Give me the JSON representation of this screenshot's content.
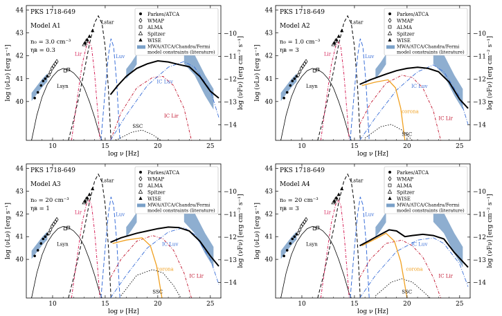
{
  "chart_data": [
    {
      "type": "line",
      "title": "PKS 1718-649",
      "model": "Model A1",
      "params": [
        "n₀ = 3.0 cm⁻³",
        "ηʙ = 0.3"
      ],
      "xlabel": "log ν [Hz]",
      "ylabel": "log (νLν) [erg s⁻¹]",
      "y2label": "log (νFν) [erg cm⁻² s⁻¹]",
      "xlim": [
        7.5,
        26
      ],
      "ylim": [
        38.3,
        44.2
      ],
      "y2lim": [
        -14.68,
        -8.78
      ],
      "xticks": [
        "10",
        "15",
        "20",
        "25"
      ],
      "yticks": [
        "40",
        "41",
        "42",
        "43",
        "44"
      ],
      "y2ticks": [
        "−10",
        "−11",
        "−12",
        "−13",
        "−14"
      ],
      "legend": [
        "Parkes/ATCA",
        "WMAP",
        "ALMA",
        "Spitzer",
        "WISE",
        "MWA/ATCA/Chandra/Fermi model constraints (literature)"
      ],
      "labels": [
        "Lstar",
        "Lsyn",
        "Lir",
        "Luv",
        "IC Luv",
        "IC Lir",
        "SSC"
      ],
      "total": [
        [
          15.5,
          40.3
        ],
        [
          16.2,
          40.7
        ],
        [
          17,
          41.1
        ],
        [
          18,
          41.45
        ],
        [
          19,
          41.65
        ],
        [
          20,
          41.78
        ],
        [
          21,
          41.73
        ],
        [
          22,
          41.62
        ],
        [
          23,
          41.52
        ],
        [
          24,
          41.1
        ],
        [
          25,
          40.45
        ],
        [
          25.8,
          40.15
        ]
      ],
      "ic_luv": [
        [
          15.5,
          38.3
        ],
        [
          17,
          39.4
        ],
        [
          19,
          40.7
        ],
        [
          21,
          41.5
        ],
        [
          22.5,
          41.75
        ],
        [
          23.5,
          41.5
        ],
        [
          25,
          40.5
        ],
        [
          25.8,
          39.3
        ]
      ],
      "ic_lir": [
        [
          15.5,
          38.3
        ],
        [
          16.5,
          39.5
        ],
        [
          18,
          40.6
        ],
        [
          19.5,
          41.05
        ],
        [
          20.5,
          41.1
        ],
        [
          21.5,
          40.7
        ],
        [
          22.5,
          39.7
        ],
        [
          23.2,
          38.3
        ]
      ],
      "ssc": [
        [
          16,
          38.3
        ],
        [
          17.5,
          38.65
        ],
        [
          18.5,
          38.75
        ],
        [
          19.5,
          38.55
        ],
        [
          20.3,
          38.3
        ]
      ],
      "corona": []
    },
    {
      "type": "line",
      "title": "PKS 1718-649",
      "model": "Model A2",
      "params": [
        "n₀ = 1.0 cm⁻³",
        "ηʙ = 3"
      ],
      "xlabel": "log ν [Hz]",
      "ylabel": "log (νLν) [erg s⁻¹]",
      "y2label": "log (νFν) [erg cm⁻² s⁻¹]",
      "xlim": [
        7.5,
        26
      ],
      "ylim": [
        38.3,
        44.2
      ],
      "y2lim": [
        -14.68,
        -8.78
      ],
      "xticks": [
        "10",
        "15",
        "20",
        "25"
      ],
      "yticks": [
        "40",
        "41",
        "42",
        "43",
        "44"
      ],
      "y2ticks": [
        "−10",
        "−11",
        "−12",
        "−13",
        "−14"
      ],
      "legend": [
        "Parkes/ATCA",
        "WMAP",
        "ALMA",
        "Spitzer",
        "WISE",
        "MWA/ATCA/Chandra/Fermi model constraints (literature)"
      ],
      "labels": [
        "Lstar",
        "Lsyn",
        "Lir",
        "Luv",
        "IC Luv",
        "IC Lir",
        "SSC",
        "corona"
      ],
      "total": [
        [
          15.5,
          40.75
        ],
        [
          16.5,
          40.95
        ],
        [
          18,
          41.2
        ],
        [
          19,
          41.35
        ],
        [
          20,
          41.45
        ],
        [
          21,
          41.5
        ],
        [
          22,
          41.45
        ],
        [
          23,
          41.3
        ],
        [
          24,
          40.85
        ],
        [
          25,
          40.1
        ],
        [
          25.8,
          39.7
        ]
      ],
      "ic_luv": [
        [
          15.5,
          38.3
        ],
        [
          17,
          39.3
        ],
        [
          19,
          40.5
        ],
        [
          21,
          41.3
        ],
        [
          22.5,
          41.6
        ],
        [
          23.5,
          41.3
        ],
        [
          25,
          40.2
        ],
        [
          25.8,
          39.0
        ]
      ],
      "ic_lir": [
        [
          15.5,
          39.0
        ],
        [
          16.5,
          39.9
        ],
        [
          18,
          40.8
        ],
        [
          19.5,
          41.15
        ],
        [
          20.5,
          41.05
        ],
        [
          21.5,
          40.6
        ],
        [
          22.5,
          39.6
        ],
        [
          23.2,
          38.3
        ]
      ],
      "ssc": [
        [
          16,
          38.4
        ],
        [
          17.5,
          38.9
        ],
        [
          18.5,
          39.0
        ],
        [
          19.5,
          38.75
        ],
        [
          20.5,
          38.3
        ]
      ],
      "corona": [
        [
          15.7,
          40.7
        ],
        [
          17,
          40.85
        ],
        [
          18.2,
          40.95
        ],
        [
          18.9,
          40.6
        ],
        [
          19.4,
          39.7
        ],
        [
          19.8,
          38.3
        ]
      ]
    },
    {
      "type": "line",
      "title": "PKS 1718-649",
      "model": "Model A3",
      "params": [
        "n₀ = 20 cm⁻³",
        "ηʙ = 1"
      ],
      "xlabel": "log ν [Hz]",
      "ylabel": "log (νLν) [erg s⁻¹]",
      "y2label": "log (νFν) [erg cm⁻² s⁻¹]",
      "xlim": [
        7.5,
        26
      ],
      "ylim": [
        38.3,
        44.2
      ],
      "y2lim": [
        -14.68,
        -8.78
      ],
      "xticks": [
        "10",
        "15",
        "20",
        "25"
      ],
      "yticks": [
        "40",
        "41",
        "42",
        "43",
        "44"
      ],
      "y2ticks": [
        "−10",
        "−11",
        "−12",
        "−13",
        "−14"
      ],
      "legend": [
        "Parkes/ATCA",
        "WMAP",
        "ALMA",
        "Spitzer",
        "WISE",
        "MWA/ATCA/Chandra/Fermi model constraints (literature)"
      ],
      "labels": [
        "Lstar",
        "Lsyn",
        "Lir",
        "Luv",
        "IC Luv",
        "IC Lir",
        "SSC",
        "corona"
      ],
      "total": [
        [
          15.5,
          40.75
        ],
        [
          16.5,
          40.95
        ],
        [
          18,
          41.15
        ],
        [
          19,
          41.25
        ],
        [
          20,
          41.35
        ],
        [
          21,
          41.42
        ],
        [
          22,
          41.4
        ],
        [
          23,
          41.25
        ],
        [
          24,
          40.8
        ],
        [
          25,
          40.15
        ],
        [
          25.8,
          39.7
        ]
      ],
      "ic_luv": [
        [
          15.5,
          38.3
        ],
        [
          17,
          39.3
        ],
        [
          19,
          40.5
        ],
        [
          21,
          41.2
        ],
        [
          22.5,
          41.4
        ],
        [
          23.5,
          41.1
        ],
        [
          25,
          40.0
        ],
        [
          25.8,
          38.9
        ]
      ],
      "ic_lir": [
        [
          15.5,
          39.2
        ],
        [
          16.5,
          40.0
        ],
        [
          18,
          40.8
        ],
        [
          19.5,
          41.05
        ],
        [
          20.5,
          40.9
        ],
        [
          21.5,
          40.4
        ],
        [
          22.5,
          39.4
        ],
        [
          23.2,
          38.3
        ]
      ],
      "ssc": [
        [
          16.5,
          38.4
        ],
        [
          18,
          39.3
        ],
        [
          19.5,
          39.55
        ],
        [
          20.5,
          39.4
        ],
        [
          21.5,
          38.85
        ],
        [
          22.2,
          38.3
        ]
      ],
      "corona": [
        [
          15.7,
          40.7
        ],
        [
          17,
          40.85
        ],
        [
          18.5,
          40.95
        ],
        [
          19.3,
          40.6
        ],
        [
          19.9,
          39.7
        ],
        [
          20.4,
          38.3
        ]
      ]
    },
    {
      "type": "line",
      "title": "PKS 1718-649",
      "model": "Model A4",
      "params": [
        "n₀ = 20 cm⁻³",
        "ηʙ = 3"
      ],
      "xlabel": "log ν [Hz]",
      "ylabel": "log (νLν) [erg s⁻¹]",
      "y2label": "log (νFν) [erg cm⁻² s⁻¹]",
      "xlim": [
        7.5,
        26
      ],
      "ylim": [
        38.3,
        44.2
      ],
      "y2lim": [
        -14.68,
        -8.78
      ],
      "xticks": [
        "10",
        "15",
        "20",
        "25"
      ],
      "yticks": [
        "40",
        "41",
        "42",
        "43",
        "44"
      ],
      "y2ticks": [
        "−10",
        "−11",
        "−12",
        "−13",
        "−14"
      ],
      "legend": [
        "Parkes/ATCA",
        "WMAP",
        "ALMA",
        "Spitzer",
        "WISE",
        "MWA/ATCA/Chandra/Fermi model constraints (literature)"
      ],
      "labels": [
        "Lstar",
        "Lsyn",
        "Lir",
        "Luv",
        "IC Luv",
        "IC Lir",
        "SSC",
        "corona"
      ],
      "total": [
        [
          15.5,
          40.6
        ],
        [
          16.5,
          40.85
        ],
        [
          17.5,
          41.1
        ],
        [
          18.3,
          41.3
        ],
        [
          19,
          41.25
        ],
        [
          19.8,
          41.0
        ],
        [
          20.5,
          41.05
        ],
        [
          21.5,
          41.1
        ],
        [
          22.5,
          41.05
        ],
        [
          23.5,
          40.9
        ],
        [
          24.5,
          40.3
        ],
        [
          25.8,
          39.65
        ]
      ],
      "ic_luv": [
        [
          15.5,
          38.3
        ],
        [
          17,
          39.3
        ],
        [
          19,
          40.35
        ],
        [
          21,
          40.85
        ],
        [
          22.5,
          40.95
        ],
        [
          23.5,
          40.7
        ],
        [
          25,
          39.8
        ],
        [
          25.8,
          38.8
        ]
      ],
      "ic_lir": [
        [
          15.5,
          39.2
        ],
        [
          16.5,
          40.0
        ],
        [
          18,
          40.7
        ],
        [
          19.5,
          40.85
        ],
        [
          20.5,
          40.6
        ],
        [
          21.5,
          40.1
        ],
        [
          22.5,
          39.2
        ],
        [
          23.2,
          38.3
        ]
      ],
      "ssc": [
        [
          17,
          38.4
        ],
        [
          18.5,
          39.0
        ],
        [
          19.5,
          39.15
        ],
        [
          20.5,
          39.0
        ],
        [
          21.5,
          38.6
        ],
        [
          22.2,
          38.3
        ]
      ],
      "corona": [
        [
          15.7,
          40.6
        ],
        [
          17,
          40.9
        ],
        [
          18,
          41.15
        ],
        [
          18.8,
          40.8
        ],
        [
          19.4,
          39.9
        ],
        [
          20.0,
          38.3
        ]
      ]
    }
  ],
  "series_colors": {
    "total": "#000000",
    "lsyn": "#000000",
    "lstar": "#000000",
    "lir": "#d6245a",
    "luv": "#3a6fd8",
    "ic_luv": "#3a6fd8",
    "ic_lir": "#c0102a",
    "ssc": "#000000",
    "corona": "#f0a020",
    "constraints": "#7aa0c8"
  },
  "shared_curves": {
    "lsyn": [
      [
        8.0,
        38.3
      ],
      [
        8.5,
        39.4
      ],
      [
        9.0,
        40.2
      ],
      [
        9.5,
        40.75
      ],
      [
        10,
        41.1
      ],
      [
        10.5,
        41.35
      ],
      [
        11,
        41.45
      ],
      [
        11.5,
        41.4
      ],
      [
        12,
        41.25
      ],
      [
        12.5,
        41.0
      ],
      [
        13,
        40.6
      ],
      [
        13.5,
        40.0
      ],
      [
        14,
        39.3
      ],
      [
        14.5,
        38.5
      ],
      [
        14.7,
        38.3
      ]
    ],
    "lstar": [
      [
        11.5,
        38.3
      ],
      [
        12,
        39.2
      ],
      [
        12.5,
        40.2
      ],
      [
        13,
        41.3
      ],
      [
        13.5,
        42.5
      ],
      [
        14,
        43.45
      ],
      [
        14.35,
        43.75
      ],
      [
        14.7,
        43.4
      ],
      [
        15,
        42.4
      ],
      [
        15.3,
        40.6
      ],
      [
        15.55,
        38.3
      ]
    ],
    "lir": [
      [
        11.8,
        38.3
      ],
      [
        12.3,
        40.0
      ],
      [
        12.8,
        41.6
      ],
      [
        13.2,
        42.4
      ],
      [
        13.45,
        42.6
      ],
      [
        13.7,
        42.4
      ],
      [
        14.0,
        41.2
      ],
      [
        14.3,
        39.5
      ],
      [
        14.5,
        38.3
      ]
    ],
    "luv": [
      [
        14.6,
        38.3
      ],
      [
        15.0,
        40.5
      ],
      [
        15.3,
        42.0
      ],
      [
        15.55,
        42.75
      ],
      [
        15.8,
        42.4
      ],
      [
        16.1,
        40.8
      ],
      [
        16.4,
        38.3
      ]
    ],
    "parkes": [
      [
        8.3,
        40.15
      ],
      [
        8.6,
        40.4
      ],
      [
        8.9,
        40.7
      ],
      [
        9.1,
        40.9
      ],
      [
        9.3,
        41.0
      ],
      [
        9.5,
        41.1
      ]
    ],
    "wmap": [
      [
        9.65,
        41.15
      ],
      [
        9.8,
        41.3
      ],
      [
        9.95,
        41.45
      ],
      [
        10.1,
        41.55
      ],
      [
        10.25,
        41.65
      ],
      [
        10.4,
        41.75
      ]
    ],
    "alma": [
      [
        11.2,
        41.35
      ],
      [
        11.5,
        41.4
      ]
    ],
    "spitzer": [
      [
        13.0,
        42.5
      ],
      [
        13.2,
        42.65
      ]
    ],
    "wise": [
      [
        13.1,
        42.55
      ],
      [
        13.3,
        42.7
      ],
      [
        13.5,
        42.85
      ],
      [
        13.8,
        43.1
      ]
    ],
    "radio_band": [
      [
        8.0,
        40.2
      ],
      [
        8.5,
        40.5
      ],
      [
        9.0,
        40.8
      ],
      [
        9.5,
        41.05
      ]
    ],
    "xray_band": [
      [
        17.0,
        41.2
      ],
      [
        17.5,
        41.5
      ],
      [
        18.0,
        41.85
      ]
    ],
    "gamma_band": [
      [
        22.5,
        42.1
      ],
      [
        23.5,
        41.6
      ],
      [
        24.5,
        40.7
      ],
      [
        25.3,
        40.1
      ]
    ]
  }
}
